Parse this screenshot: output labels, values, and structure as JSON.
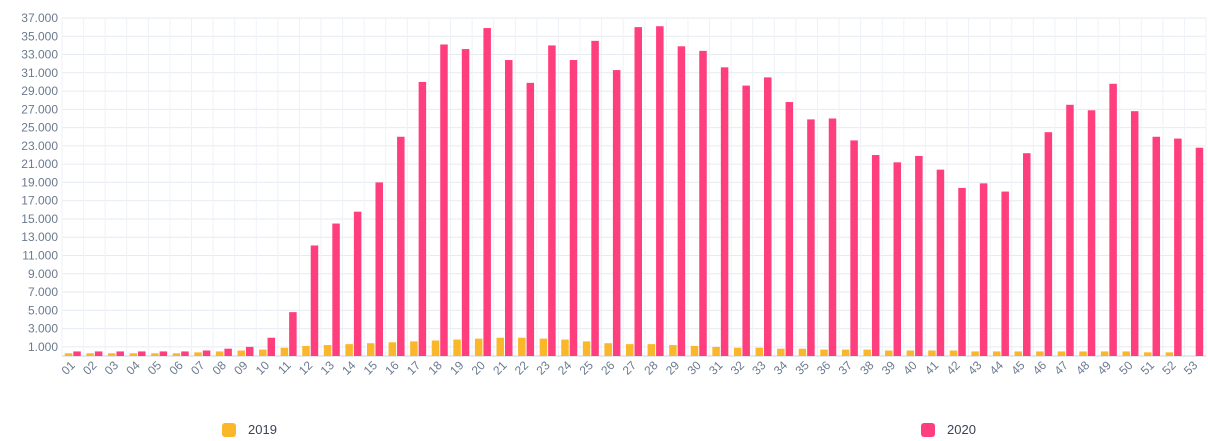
{
  "chart_data": {
    "type": "bar",
    "categories": [
      "01",
      "02",
      "03",
      "04",
      "05",
      "06",
      "07",
      "08",
      "09",
      "10",
      "11",
      "12",
      "13",
      "14",
      "15",
      "16",
      "17",
      "18",
      "19",
      "20",
      "21",
      "22",
      "23",
      "24",
      "25",
      "26",
      "27",
      "28",
      "29",
      "30",
      "31",
      "32",
      "33",
      "34",
      "35",
      "36",
      "37",
      "38",
      "39",
      "40",
      "41",
      "42",
      "43",
      "44",
      "45",
      "46",
      "47",
      "48",
      "49",
      "50",
      "51",
      "52",
      "53"
    ],
    "series": [
      {
        "name": "2019",
        "color": "#fbb72a",
        "values": [
          300,
          300,
          300,
          300,
          300,
          300,
          400,
          500,
          600,
          700,
          900,
          1100,
          1200,
          1300,
          1400,
          1500,
          1600,
          1700,
          1800,
          1900,
          2000,
          2000,
          1900,
          1800,
          1600,
          1400,
          1300,
          1300,
          1200,
          1100,
          1000,
          900,
          900,
          800,
          800,
          700,
          700,
          700,
          600,
          600,
          600,
          600,
          500,
          500,
          500,
          500,
          500,
          500,
          500,
          500,
          400,
          400,
          null
        ]
      },
      {
        "name": "2020",
        "color": "#ff3e7d",
        "values": [
          500,
          500,
          500,
          500,
          500,
          500,
          600,
          800,
          1000,
          2000,
          4800,
          12100,
          14500,
          15800,
          19000,
          24000,
          30000,
          34100,
          33600,
          35900,
          32400,
          29900,
          34000,
          32400,
          34500,
          31300,
          36000,
          36100,
          33900,
          33400,
          31600,
          29600,
          30500,
          27800,
          25900,
          26000,
          23600,
          22000,
          21200,
          21900,
          20400,
          18400,
          18900,
          18000,
          22200,
          24500,
          27500,
          26900,
          29800,
          26800,
          24000,
          23800,
          22800
        ]
      }
    ],
    "y_ticks": [
      "1.000",
      "3.000",
      "5.000",
      "7.000",
      "9.000",
      "11.000",
      "13.000",
      "15.000",
      "17.000",
      "19.000",
      "21.000",
      "23.000",
      "25.000",
      "27.000",
      "29.000",
      "31.000",
      "33.000",
      "35.000",
      "37.000"
    ],
    "ylim": [
      0,
      37000
    ],
    "grid": true,
    "legend_position": "bottom"
  },
  "legend": {
    "items": [
      {
        "label": "2019",
        "color": "#fbb72a"
      },
      {
        "label": "2020",
        "color": "#ff3e7d"
      }
    ]
  }
}
